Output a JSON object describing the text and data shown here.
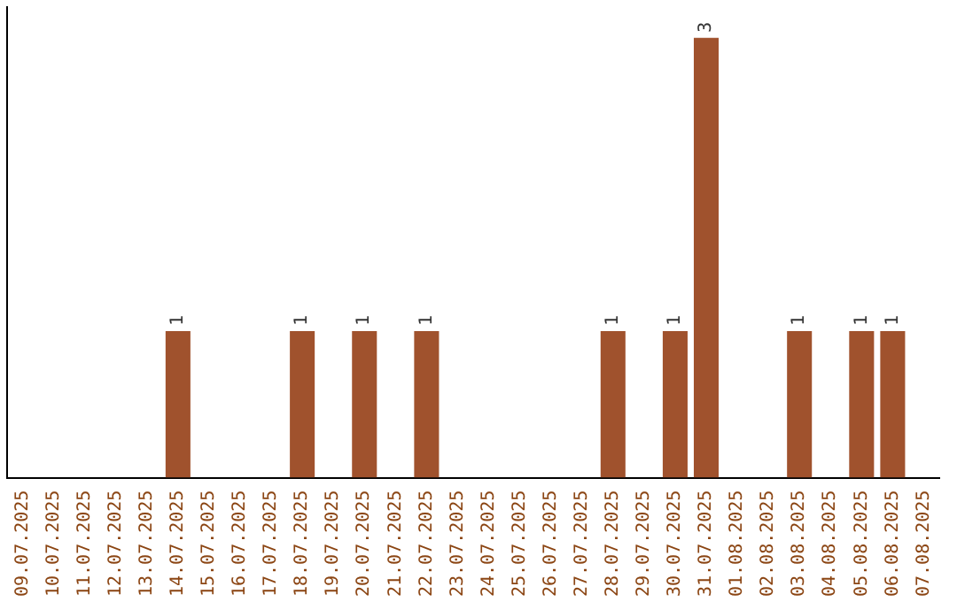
{
  "chart_data": {
    "type": "bar",
    "categories": [
      "09.07.2025",
      "10.07.2025",
      "11.07.2025",
      "12.07.2025",
      "13.07.2025",
      "14.07.2025",
      "15.07.2025",
      "16.07.2025",
      "17.07.2025",
      "18.07.2025",
      "19.07.2025",
      "20.07.2025",
      "21.07.2025",
      "22.07.2025",
      "23.07.2025",
      "24.07.2025",
      "25.07.2025",
      "26.07.2025",
      "27.07.2025",
      "28.07.2025",
      "29.07.2025",
      "30.07.2025",
      "31.07.2025",
      "01.08.2025",
      "02.08.2025",
      "03.08.2025",
      "04.08.2025",
      "05.08.2025",
      "06.08.2025",
      "07.08.2025"
    ],
    "values": [
      0,
      0,
      0,
      0,
      0,
      1,
      0,
      0,
      0,
      1,
      0,
      1,
      0,
      1,
      0,
      0,
      0,
      0,
      0,
      1,
      0,
      1,
      3,
      0,
      0,
      1,
      0,
      1,
      1,
      0
    ],
    "value_labels": [
      null,
      null,
      null,
      null,
      null,
      "1",
      null,
      null,
      null,
      "1",
      null,
      "1",
      null,
      "1",
      null,
      null,
      null,
      null,
      null,
      "1",
      null,
      "1",
      "3",
      null,
      null,
      "1",
      null,
      "1",
      "1",
      null
    ],
    "color": "#a0522d",
    "grid": false,
    "legend": false,
    "tick_labels": "x"
  }
}
